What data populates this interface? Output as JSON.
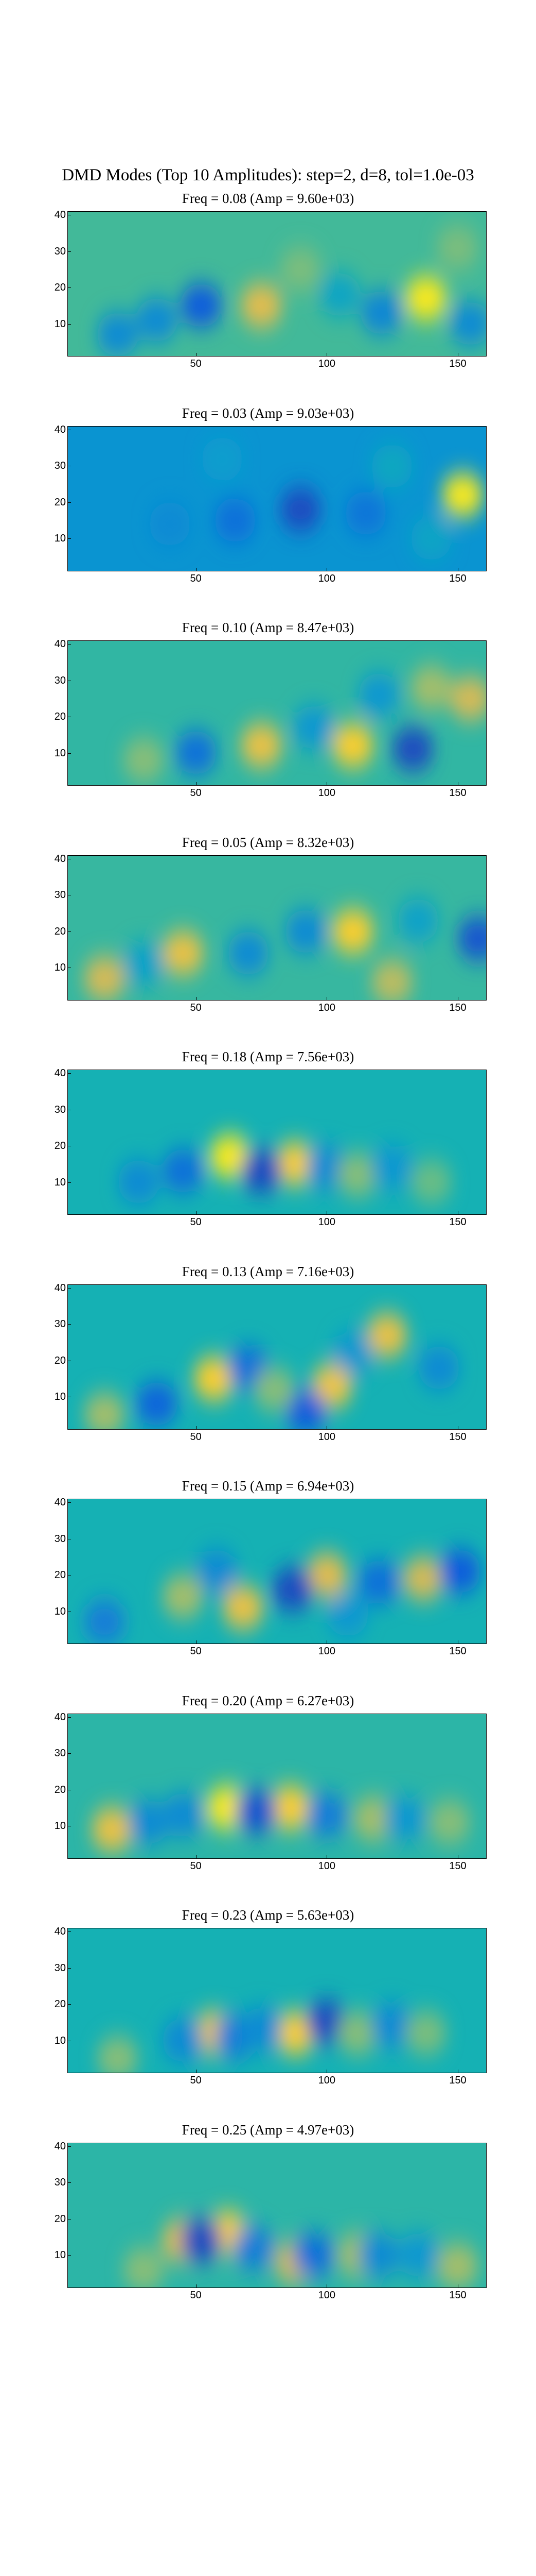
{
  "figure": {
    "title": "DMD Modes (Top 10 Amplitudes): step=2, d=8, tol=1.0e-03",
    "colormap": "parula",
    "background": "#ffffff"
  },
  "chart_data": [
    {
      "type": "heatmap",
      "title": "Freq = 0.08 (Amp = 9.60e+03)",
      "xlim": [
        1,
        161
      ],
      "ylim": [
        1,
        41
      ],
      "xticks": [
        50,
        100,
        150
      ],
      "yticks": [
        10,
        20,
        30,
        40
      ],
      "base_level": 0.58,
      "features": [
        {
          "x": 138,
          "y": 17,
          "value": 0.98
        },
        {
          "x": 75,
          "y": 15,
          "value": 0.88
        },
        {
          "x": 90,
          "y": 25,
          "value": 0.68
        },
        {
          "x": 52,
          "y": 15,
          "value": 0.12
        },
        {
          "x": 35,
          "y": 11,
          "value": 0.3
        },
        {
          "x": 105,
          "y": 18,
          "value": 0.42
        },
        {
          "x": 121,
          "y": 13,
          "value": 0.28
        },
        {
          "x": 150,
          "y": 31,
          "value": 0.68
        },
        {
          "x": 155,
          "y": 10,
          "value": 0.3
        },
        {
          "x": 20,
          "y": 7,
          "value": 0.3
        }
      ]
    },
    {
      "type": "heatmap",
      "title": "Freq = 0.03 (Amp = 9.03e+03)",
      "xlim": [
        1,
        161
      ],
      "ylim": [
        1,
        41
      ],
      "xticks": [
        50,
        100,
        150
      ],
      "yticks": [
        10,
        20,
        30,
        40
      ],
      "base_level": 0.34,
      "features": [
        {
          "x": 152,
          "y": 22,
          "value": 0.98
        },
        {
          "x": 90,
          "y": 18,
          "value": 0.08
        },
        {
          "x": 65,
          "y": 15,
          "value": 0.2
        },
        {
          "x": 115,
          "y": 17,
          "value": 0.22
        },
        {
          "x": 40,
          "y": 14,
          "value": 0.3
        },
        {
          "x": 125,
          "y": 30,
          "value": 0.44
        },
        {
          "x": 60,
          "y": 32,
          "value": 0.38
        },
        {
          "x": 140,
          "y": 10,
          "value": 0.42
        }
      ]
    },
    {
      "type": "heatmap",
      "title": "Freq = 0.10 (Amp = 8.47e+03)",
      "xlim": [
        1,
        161
      ],
      "ylim": [
        1,
        41
      ],
      "xticks": [
        50,
        100,
        150
      ],
      "yticks": [
        10,
        20,
        30,
        40
      ],
      "base_level": 0.55,
      "features": [
        {
          "x": 110,
          "y": 12,
          "value": 0.95
        },
        {
          "x": 75,
          "y": 12,
          "value": 0.9
        },
        {
          "x": 133,
          "y": 11,
          "value": 0.08
        },
        {
          "x": 50,
          "y": 10,
          "value": 0.2
        },
        {
          "x": 95,
          "y": 17,
          "value": 0.35
        },
        {
          "x": 155,
          "y": 25,
          "value": 0.85
        },
        {
          "x": 120,
          "y": 26,
          "value": 0.35
        },
        {
          "x": 30,
          "y": 8,
          "value": 0.7
        },
        {
          "x": 140,
          "y": 28,
          "value": 0.75
        }
      ]
    },
    {
      "type": "heatmap",
      "title": "Freq = 0.05 (Amp = 8.32e+03)",
      "xlim": [
        1,
        161
      ],
      "ylim": [
        1,
        41
      ],
      "xticks": [
        50,
        100,
        150
      ],
      "yticks": [
        10,
        20,
        30,
        40
      ],
      "base_level": 0.56,
      "features": [
        {
          "x": 110,
          "y": 20,
          "value": 0.95
        },
        {
          "x": 45,
          "y": 14,
          "value": 0.9
        },
        {
          "x": 158,
          "y": 18,
          "value": 0.1
        },
        {
          "x": 92,
          "y": 20,
          "value": 0.3
        },
        {
          "x": 70,
          "y": 14,
          "value": 0.3
        },
        {
          "x": 135,
          "y": 23,
          "value": 0.4
        },
        {
          "x": 15,
          "y": 7,
          "value": 0.85
        },
        {
          "x": 125,
          "y": 6,
          "value": 0.8
        },
        {
          "x": 30,
          "y": 11,
          "value": 0.4
        }
      ]
    },
    {
      "type": "heatmap",
      "title": "Freq = 0.18 (Amp = 7.56e+03)",
      "xlim": [
        1,
        161
      ],
      "ylim": [
        1,
        41
      ],
      "xticks": [
        50,
        100,
        150
      ],
      "yticks": [
        10,
        20,
        30,
        40
      ],
      "base_level": 0.5,
      "features": [
        {
          "x": 63,
          "y": 17,
          "value": 0.98
        },
        {
          "x": 88,
          "y": 15,
          "value": 0.95
        },
        {
          "x": 75,
          "y": 13,
          "value": 0.08
        },
        {
          "x": 45,
          "y": 13,
          "value": 0.2
        },
        {
          "x": 100,
          "y": 14,
          "value": 0.3
        },
        {
          "x": 112,
          "y": 12,
          "value": 0.7
        },
        {
          "x": 125,
          "y": 14,
          "value": 0.35
        },
        {
          "x": 140,
          "y": 10,
          "value": 0.65
        },
        {
          "x": 28,
          "y": 10,
          "value": 0.3
        }
      ]
    },
    {
      "type": "heatmap",
      "title": "Freq = 0.13 (Amp = 7.16e+03)",
      "xlim": [
        1,
        161
      ],
      "ylim": [
        1,
        41
      ],
      "xticks": [
        50,
        100,
        150
      ],
      "yticks": [
        10,
        20,
        30,
        40
      ],
      "base_level": 0.5,
      "features": [
        {
          "x": 57,
          "y": 15,
          "value": 0.95
        },
        {
          "x": 102,
          "y": 13,
          "value": 0.92
        },
        {
          "x": 123,
          "y": 27,
          "value": 0.9
        },
        {
          "x": 35,
          "y": 8,
          "value": 0.15
        },
        {
          "x": 70,
          "y": 18,
          "value": 0.2
        },
        {
          "x": 92,
          "y": 6,
          "value": 0.12
        },
        {
          "x": 110,
          "y": 22,
          "value": 0.35
        },
        {
          "x": 143,
          "y": 18,
          "value": 0.3
        },
        {
          "x": 80,
          "y": 12,
          "value": 0.7
        },
        {
          "x": 15,
          "y": 5,
          "value": 0.75
        }
      ]
    },
    {
      "type": "heatmap",
      "title": "Freq = 0.15 (Amp = 6.94e+03)",
      "xlim": [
        1,
        161
      ],
      "ylim": [
        1,
        41
      ],
      "xticks": [
        50,
        100,
        150
      ],
      "yticks": [
        10,
        20,
        30,
        40
      ],
      "base_level": 0.5,
      "features": [
        {
          "x": 68,
          "y": 11,
          "value": 0.9
        },
        {
          "x": 100,
          "y": 20,
          "value": 0.88
        },
        {
          "x": 137,
          "y": 19,
          "value": 0.85
        },
        {
          "x": 87,
          "y": 16,
          "value": 0.08
        },
        {
          "x": 120,
          "y": 18,
          "value": 0.2
        },
        {
          "x": 151,
          "y": 21,
          "value": 0.12
        },
        {
          "x": 108,
          "y": 9,
          "value": 0.35
        },
        {
          "x": 58,
          "y": 21,
          "value": 0.3
        },
        {
          "x": 45,
          "y": 14,
          "value": 0.75
        },
        {
          "x": 15,
          "y": 7,
          "value": 0.25
        }
      ]
    },
    {
      "type": "heatmap",
      "title": "Freq = 0.20 (Amp = 6.27e+03)",
      "xlim": [
        1,
        161
      ],
      "ylim": [
        1,
        41
      ],
      "xticks": [
        50,
        100,
        150
      ],
      "yticks": [
        10,
        20,
        30,
        40
      ],
      "base_level": 0.54,
      "features": [
        {
          "x": 62,
          "y": 15,
          "value": 0.98
        },
        {
          "x": 86,
          "y": 15,
          "value": 0.95
        },
        {
          "x": 73,
          "y": 14,
          "value": 0.1
        },
        {
          "x": 100,
          "y": 13,
          "value": 0.25
        },
        {
          "x": 45,
          "y": 13,
          "value": 0.3
        },
        {
          "x": 18,
          "y": 9,
          "value": 0.9
        },
        {
          "x": 32,
          "y": 11,
          "value": 0.3
        },
        {
          "x": 118,
          "y": 12,
          "value": 0.75
        },
        {
          "x": 130,
          "y": 12,
          "value": 0.35
        },
        {
          "x": 147,
          "y": 11,
          "value": 0.7
        }
      ]
    },
    {
      "type": "heatmap",
      "title": "Freq = 0.23 (Amp = 5.63e+03)",
      "xlim": [
        1,
        161
      ],
      "ylim": [
        1,
        41
      ],
      "xticks": [
        50,
        100,
        150
      ],
      "yticks": [
        10,
        20,
        30,
        40
      ],
      "base_level": 0.5,
      "features": [
        {
          "x": 57,
          "y": 12,
          "value": 0.92
        },
        {
          "x": 88,
          "y": 12,
          "value": 0.95
        },
        {
          "x": 100,
          "y": 15,
          "value": 0.08
        },
        {
          "x": 65,
          "y": 11,
          "value": 0.25
        },
        {
          "x": 75,
          "y": 13,
          "value": 0.3
        },
        {
          "x": 45,
          "y": 10,
          "value": 0.3
        },
        {
          "x": 112,
          "y": 12,
          "value": 0.7
        },
        {
          "x": 125,
          "y": 14,
          "value": 0.3
        },
        {
          "x": 138,
          "y": 12,
          "value": 0.68
        },
        {
          "x": 20,
          "y": 5,
          "value": 0.7
        }
      ]
    },
    {
      "type": "heatmap",
      "title": "Freq = 0.25 (Amp = 4.97e+03)",
      "xlim": [
        1,
        161
      ],
      "ylim": [
        1,
        41
      ],
      "xticks": [
        50,
        100,
        150
      ],
      "yticks": [
        10,
        20,
        30,
        40
      ],
      "base_level": 0.54,
      "features": [
        {
          "x": 62,
          "y": 16,
          "value": 0.95
        },
        {
          "x": 45,
          "y": 14,
          "value": 0.88
        },
        {
          "x": 52,
          "y": 14,
          "value": 0.08
        },
        {
          "x": 72,
          "y": 12,
          "value": 0.25
        },
        {
          "x": 88,
          "y": 8,
          "value": 0.85
        },
        {
          "x": 95,
          "y": 10,
          "value": 0.2
        },
        {
          "x": 112,
          "y": 10,
          "value": 0.75
        },
        {
          "x": 120,
          "y": 10,
          "value": 0.3
        },
        {
          "x": 30,
          "y": 6,
          "value": 0.7
        },
        {
          "x": 150,
          "y": 7,
          "value": 0.75
        },
        {
          "x": 135,
          "y": 10,
          "value": 0.35
        }
      ]
    }
  ]
}
